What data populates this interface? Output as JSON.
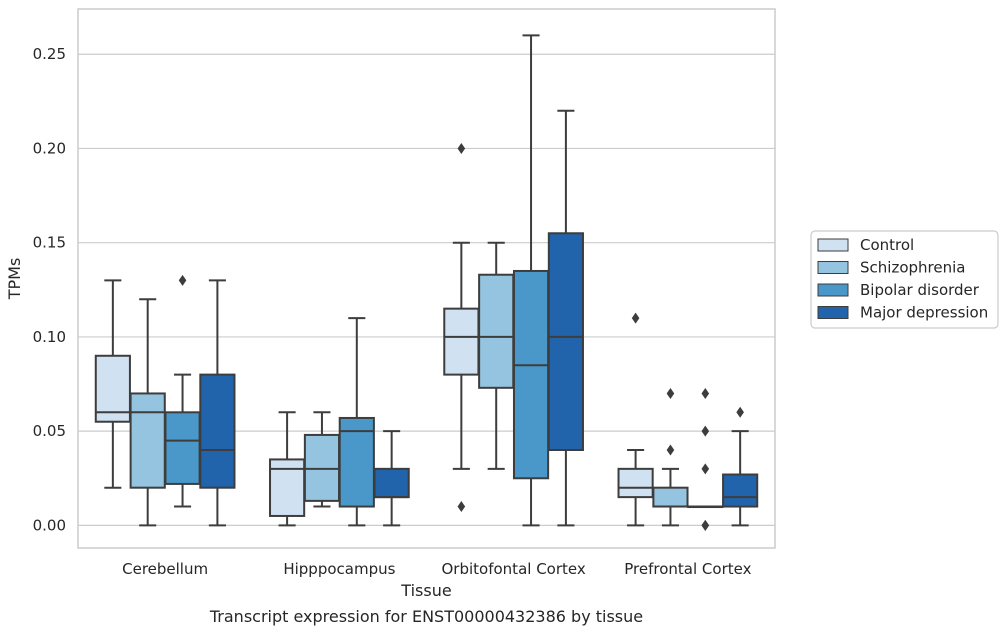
{
  "chart_data": {
    "type": "box",
    "title": "",
    "caption": "Transcript expression for ENST00000432386 by tissue",
    "xlabel": "Tissue",
    "ylabel": "TPMs",
    "ylim": [
      -0.012,
      0.274
    ],
    "yticks": [
      0.0,
      0.05,
      0.1,
      0.15,
      0.2,
      0.25
    ],
    "ytick_labels": [
      "0.00",
      "0.05",
      "0.10",
      "0.15",
      "0.20",
      "0.25"
    ],
    "grid": "horizontal",
    "legend_position": "right",
    "categories": [
      "Cerebellum",
      "Hipppocampus",
      "Orbitofontal Cortex",
      "Prefrontal Cortex"
    ],
    "series": [
      {
        "name": "Control",
        "color": "#d0e1f2",
        "boxes": [
          {
            "whislo": 0.02,
            "q1": 0.055,
            "med": 0.06,
            "q3": 0.09,
            "whishi": 0.13,
            "fliers": []
          },
          {
            "whislo": 0.0,
            "q1": 0.005,
            "med": 0.03,
            "q3": 0.035,
            "whishi": 0.06,
            "fliers": []
          },
          {
            "whislo": 0.03,
            "q1": 0.08,
            "med": 0.1,
            "q3": 0.115,
            "whishi": 0.15,
            "fliers": [
              0.2,
              0.01
            ]
          },
          {
            "whislo": 0.0,
            "q1": 0.015,
            "med": 0.02,
            "q3": 0.03,
            "whishi": 0.04,
            "fliers": [
              0.11
            ]
          }
        ]
      },
      {
        "name": "Schizophrenia",
        "color": "#94c4df",
        "boxes": [
          {
            "whislo": 0.0,
            "q1": 0.02,
            "med": 0.06,
            "q3": 0.07,
            "whishi": 0.12,
            "fliers": []
          },
          {
            "whislo": 0.01,
            "q1": 0.013,
            "med": 0.03,
            "q3": 0.048,
            "whishi": 0.06,
            "fliers": []
          },
          {
            "whislo": 0.03,
            "q1": 0.073,
            "med": 0.1,
            "q3": 0.133,
            "whishi": 0.15,
            "fliers": []
          },
          {
            "whislo": 0.0,
            "q1": 0.01,
            "med": 0.01,
            "q3": 0.02,
            "whishi": 0.03,
            "fliers": [
              0.07,
              0.04
            ]
          }
        ]
      },
      {
        "name": "Bipolar disorder",
        "color": "#4a98c9",
        "boxes": [
          {
            "whislo": 0.01,
            "q1": 0.022,
            "med": 0.045,
            "q3": 0.06,
            "whishi": 0.08,
            "fliers": [
              0.13
            ]
          },
          {
            "whislo": 0.0,
            "q1": 0.01,
            "med": 0.05,
            "q3": 0.057,
            "whishi": 0.11,
            "fliers": []
          },
          {
            "whislo": 0.0,
            "q1": 0.025,
            "med": 0.085,
            "q3": 0.135,
            "whishi": 0.26,
            "fliers": []
          },
          {
            "whislo": 0.01,
            "q1": 0.01,
            "med": 0.01,
            "q3": 0.01,
            "whishi": 0.01,
            "fliers": [
              0.07,
              0.05,
              0.03,
              0.0,
              0.0
            ]
          }
        ]
      },
      {
        "name": "Major depression",
        "color": "#2164ab",
        "boxes": [
          {
            "whislo": 0.0,
            "q1": 0.02,
            "med": 0.04,
            "q3": 0.08,
            "whishi": 0.13,
            "fliers": []
          },
          {
            "whislo": 0.0,
            "q1": 0.015,
            "med": 0.015,
            "q3": 0.03,
            "whishi": 0.05,
            "fliers": []
          },
          {
            "whislo": 0.0,
            "q1": 0.04,
            "med": 0.1,
            "q3": 0.155,
            "whishi": 0.22,
            "fliers": []
          },
          {
            "whislo": 0.0,
            "q1": 0.01,
            "med": 0.015,
            "q3": 0.027,
            "whishi": 0.05,
            "fliers": [
              0.06
            ]
          }
        ]
      }
    ]
  }
}
